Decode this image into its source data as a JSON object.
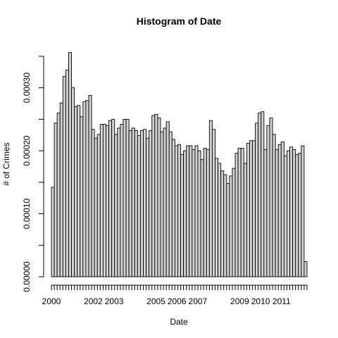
{
  "chart_data": {
    "type": "bar",
    "title": "Histogram of Date",
    "xlabel": "Date",
    "ylabel": "# of Crimes",
    "ylim": [
      0,
      0.00036
    ],
    "y_ticks": [
      0,
      0.0001,
      0.0002,
      0.0003
    ],
    "y_tick_labels": [
      "0.00000",
      "0.00010",
      "0.00020",
      "0.00030"
    ],
    "y_minor_ticks": [
      5e-05,
      0.00015,
      0.00025,
      0.00035
    ],
    "x_tick_labels": [
      "2000",
      "2002",
      "2003",
      "2005",
      "2006",
      "2007",
      "2009",
      "2010",
      "2011"
    ],
    "x_tick_positions": [
      2000.0,
      2002.0,
      2003.0,
      2005.0,
      2006.0,
      2007.0,
      2009.0,
      2010.0,
      2011.0
    ],
    "bin_start": 2000.0,
    "bin_width": 0.1373,
    "bar_fill": "#d3d3d3",
    "bar_stroke": "#000000",
    "values": [
      0.000142,
      0.000244,
      0.00026,
      0.000276,
      0.000318,
      0.000328,
      0.000356,
      0.0003,
      0.00027,
      0.000272,
      0.000254,
      0.000278,
      0.00028,
      0.000288,
      0.000234,
      0.00022,
      0.000226,
      0.000242,
      0.000242,
      0.00024,
      0.000248,
      0.00025,
      0.000226,
      0.000236,
      0.000242,
      0.00025,
      0.00025,
      0.000232,
      0.000236,
      0.000232,
      0.000224,
      0.000232,
      0.000234,
      0.00022,
      0.000232,
      0.000256,
      0.000258,
      0.000252,
      0.00023,
      0.000236,
      0.000246,
      0.00023,
      0.000218,
      0.000208,
      0.00021,
      0.000194,
      0.0002,
      0.000208,
      0.000208,
      0.000202,
      0.000208,
      0.0002,
      0.000186,
      0.000204,
      0.000202,
      0.000248,
      0.000234,
      0.000188,
      0.00018,
      0.000168,
      0.000162,
      0.000148,
      0.00016,
      0.000172,
      0.000196,
      0.000204,
      0.000204,
      0.00018,
      0.000212,
      0.000216,
      0.000216,
      0.000244,
      0.00026,
      0.000262,
      0.000202,
      0.00024,
      0.000252,
      0.000226,
      0.000202,
      0.00021,
      0.000214,
      0.000192,
      0.0002,
      0.000206,
      0.000202,
      0.000194,
      0.000196,
      0.000208,
      2.4e-05
    ]
  }
}
